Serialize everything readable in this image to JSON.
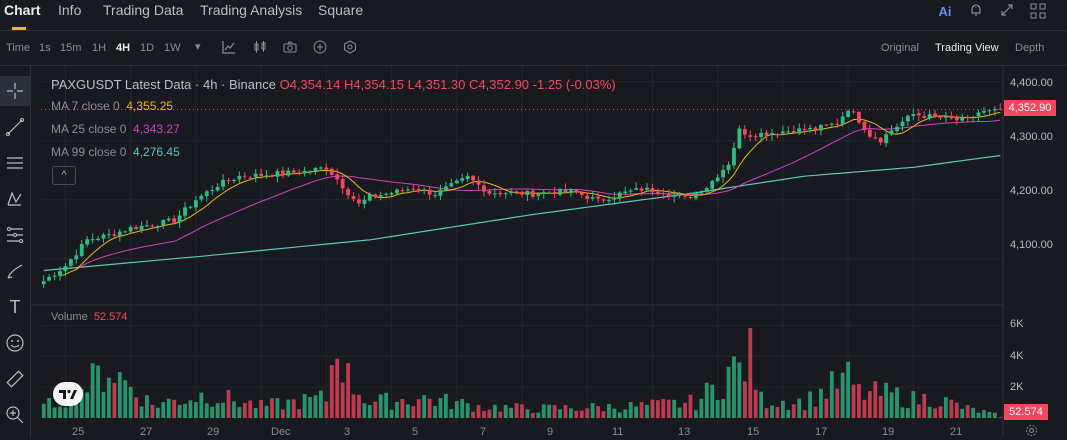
{
  "tabs": [
    "Chart",
    "Info",
    "Trading Data",
    "Trading Analysis",
    "Square"
  ],
  "top_icons": [
    "ai-icon",
    "bell-icon",
    "expand-icon",
    "grid-icon"
  ],
  "toolbar": {
    "time_label": "Time",
    "intervals": [
      "1s",
      "15m",
      "1H",
      "4H",
      "1D",
      "1W"
    ],
    "active_interval": "4H",
    "views": [
      "Original",
      "Trading View",
      "Depth"
    ],
    "active_view": "Trading View"
  },
  "sidebar_tools": [
    "crosshair-icon",
    "trendline-icon",
    "horizontal-lines-icon",
    "pattern-icon",
    "fib-icon",
    "brush-icon",
    "text-icon",
    "emoji-icon",
    "ruler-icon",
    "zoom-icon"
  ],
  "legend": {
    "title": "PAXGUSDT Latest Data · 4h · Binance",
    "open": "O4,354.14",
    "high": "H4,354.15",
    "low": "L4,351.30",
    "close": "C4,352.90",
    "change": "-1.25 (-0.03%)",
    "ma7_label": "MA 7 close 0",
    "ma7_value": "4,355.25",
    "ma25_label": "MA 25 close 0",
    "ma25_value": "4,343.27",
    "ma99_label": "MA 99 close 0",
    "ma99_value": "4,276.45",
    "collapse": "^"
  },
  "volume_legend": {
    "label": "Volume",
    "value": "52.574"
  },
  "price_axis": [
    "4,400.00",
    "4,300.00",
    "4,200.00",
    "4,100.00"
  ],
  "volume_axis": [
    "6K",
    "4K",
    "2K"
  ],
  "last_price": "4,352.90",
  "last_volume": "52.574",
  "x_axis": [
    "25",
    "27",
    "29",
    "Dec",
    "3",
    "5",
    "7",
    "9",
    "11",
    "13",
    "15",
    "17",
    "19",
    "21"
  ],
  "colors": {
    "up": "#2ebd85",
    "down": "#f6465d",
    "ma7": "#f0b90b",
    "ma25": "#d63ec6",
    "ma99": "#5cc8c0",
    "accent": "#f0b90b"
  },
  "chart_data": {
    "type": "candlestick",
    "title": "PAXGUSDT Latest Data · 4h · Binance",
    "x_ticks": [
      "25",
      "27",
      "29",
      "Dec",
      "3",
      "5",
      "7",
      "9",
      "11",
      "13",
      "15",
      "17",
      "19",
      "21"
    ],
    "ylim": [
      4030,
      4420
    ],
    "volume_ylim": [
      0,
      7000
    ],
    "close_path": [
      [
        0,
        4062
      ],
      [
        4,
        4088
      ],
      [
        8,
        4132
      ],
      [
        12,
        4140
      ],
      [
        16,
        4152
      ],
      [
        20,
        4158
      ],
      [
        24,
        4165
      ],
      [
        28,
        4200
      ],
      [
        32,
        4225
      ],
      [
        36,
        4240
      ],
      [
        40,
        4242
      ],
      [
        44,
        4245
      ],
      [
        48,
        4248
      ],
      [
        52,
        4255
      ],
      [
        54,
        4235
      ],
      [
        56,
        4212
      ],
      [
        58,
        4192
      ],
      [
        60,
        4205
      ],
      [
        64,
        4212
      ],
      [
        68,
        4220
      ],
      [
        72,
        4210
      ],
      [
        76,
        4228
      ],
      [
        78,
        4238
      ],
      [
        82,
        4212
      ],
      [
        86,
        4212
      ],
      [
        90,
        4210
      ],
      [
        94,
        4214
      ],
      [
        98,
        4212
      ],
      [
        102,
        4198
      ],
      [
        106,
        4210
      ],
      [
        110,
        4218
      ],
      [
        114,
        4214
      ],
      [
        118,
        4202
      ],
      [
        122,
        4222
      ],
      [
        126,
        4262
      ],
      [
        128,
        4318
      ],
      [
        130,
        4310
      ],
      [
        134,
        4314
      ],
      [
        138,
        4318
      ],
      [
        142,
        4320
      ],
      [
        146,
        4330
      ],
      [
        148,
        4355
      ],
      [
        150,
        4335
      ],
      [
        152,
        4310
      ],
      [
        154,
        4302
      ],
      [
        156,
        4318
      ],
      [
        158,
        4332
      ],
      [
        160,
        4345
      ],
      [
        164,
        4340
      ],
      [
        168,
        4335
      ],
      [
        170,
        4335
      ],
      [
        172,
        4348
      ],
      [
        176,
        4350
      ]
    ],
    "volume_path": [
      [
        0,
        800
      ],
      [
        8,
        2500
      ],
      [
        12,
        3800
      ],
      [
        20,
        1000
      ],
      [
        30,
        1800
      ],
      [
        40,
        900
      ],
      [
        52,
        1500
      ],
      [
        54,
        6400
      ],
      [
        56,
        3000
      ],
      [
        60,
        1200
      ],
      [
        70,
        1500
      ],
      [
        80,
        900
      ],
      [
        90,
        700
      ],
      [
        100,
        800
      ],
      [
        110,
        900
      ],
      [
        120,
        1200
      ],
      [
        124,
        2500
      ],
      [
        126,
        3600
      ],
      [
        128,
        3700
      ],
      [
        130,
        4600
      ],
      [
        132,
        1400
      ],
      [
        140,
        1200
      ],
      [
        146,
        2600
      ],
      [
        148,
        3000
      ],
      [
        150,
        1900
      ],
      [
        156,
        1800
      ],
      [
        160,
        1400
      ],
      [
        164,
        1500
      ],
      [
        170,
        700
      ],
      [
        176,
        200
      ]
    ],
    "ma7": {
      "name": "MA 7 close 0",
      "last": 4355.25
    },
    "ma25": {
      "name": "MA 25 close 0",
      "last": 4343.27
    },
    "ma99": {
      "name": "MA 99 close 0",
      "last": 4276.45
    },
    "ma99_path": [
      [
        0,
        4080
      ],
      [
        30,
        4105
      ],
      [
        60,
        4132
      ],
      [
        90,
        4175
      ],
      [
        120,
        4212
      ],
      [
        140,
        4240
      ],
      [
        160,
        4255
      ],
      [
        176,
        4275
      ]
    ],
    "last_close": 4352.9,
    "last_volume": 52.574
  }
}
